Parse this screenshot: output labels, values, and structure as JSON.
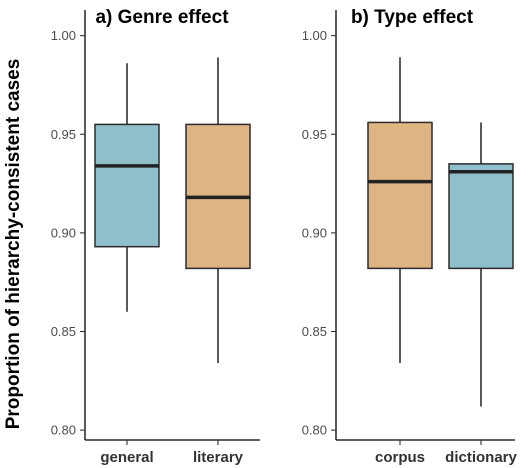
{
  "figure": {
    "ylabel": "Proportion of hierarchy-consistent cases"
  },
  "colors": {
    "blue": "#8fbfcb",
    "orange": "#ddb482"
  },
  "chart_data": [
    {
      "type": "box",
      "title": "a) Genre effect",
      "ylabel": "Proportion of hierarchy-consistent cases",
      "ylim": [
        0.795,
        1.013
      ],
      "yticks": [
        "0.80",
        "0.85",
        "0.90",
        "0.95",
        "1.00"
      ],
      "categories": [
        "general",
        "literary"
      ],
      "boxes": [
        {
          "name": "general",
          "min": 0.86,
          "q1": 0.893,
          "median": 0.934,
          "q3": 0.955,
          "max": 0.986,
          "color": "#8fbfcb"
        },
        {
          "name": "literary",
          "min": 0.834,
          "q1": 0.882,
          "median": 0.918,
          "q3": 0.955,
          "max": 0.989,
          "color": "#ddb482"
        }
      ]
    },
    {
      "type": "box",
      "title": "b) Type effect",
      "ylim": [
        0.795,
        1.013
      ],
      "yticks": [
        "0.80",
        "0.85",
        "0.90",
        "0.95",
        "1.00"
      ],
      "categories": [
        "corpus",
        "dictionary"
      ],
      "boxes": [
        {
          "name": "corpus",
          "min": 0.834,
          "q1": 0.882,
          "median": 0.926,
          "q3": 0.956,
          "max": 0.989,
          "color": "#ddb482"
        },
        {
          "name": "dictionary",
          "min": 0.812,
          "q1": 0.882,
          "median": 0.931,
          "q3": 0.935,
          "max": 0.956,
          "color": "#8fbfcb"
        }
      ]
    }
  ]
}
